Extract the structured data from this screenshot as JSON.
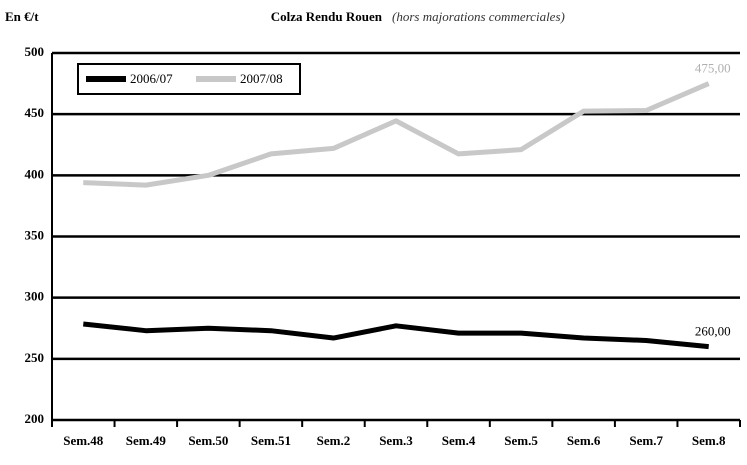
{
  "chart_data": {
    "type": "line",
    "title": "Colza Rendu Rouen",
    "subtitle": "(hors majorations commerciales)",
    "y_label": "En €/t",
    "categories": [
      "Sem.48",
      "Sem.49",
      "Sem.50",
      "Sem.51",
      "Sem.2",
      "Sem.3",
      "Sem.4",
      "Sem.5",
      "Sem.6",
      "Sem.7",
      "Sem.8"
    ],
    "series": [
      {
        "name": "2006/07",
        "color": "#000000",
        "values": [
          278.5,
          273,
          275,
          273,
          267,
          277,
          271,
          271,
          267,
          265,
          260
        ],
        "value_labels": [
          null,
          null,
          null,
          null,
          null,
          null,
          null,
          null,
          null,
          null,
          "260,00"
        ]
      },
      {
        "name": "2007/08",
        "color": "#c8c8c8",
        "values": [
          394,
          392,
          400,
          417.5,
          422,
          444.5,
          417.5,
          421,
          452.5,
          453,
          475
        ],
        "value_labels": [
          null,
          null,
          null,
          null,
          null,
          null,
          null,
          null,
          null,
          null,
          "475,00"
        ]
      }
    ],
    "ylim": [
      200,
      500
    ],
    "yticks": [
      200,
      250,
      300,
      350,
      400,
      450,
      500
    ],
    "grid": true,
    "legend": "top-left"
  }
}
